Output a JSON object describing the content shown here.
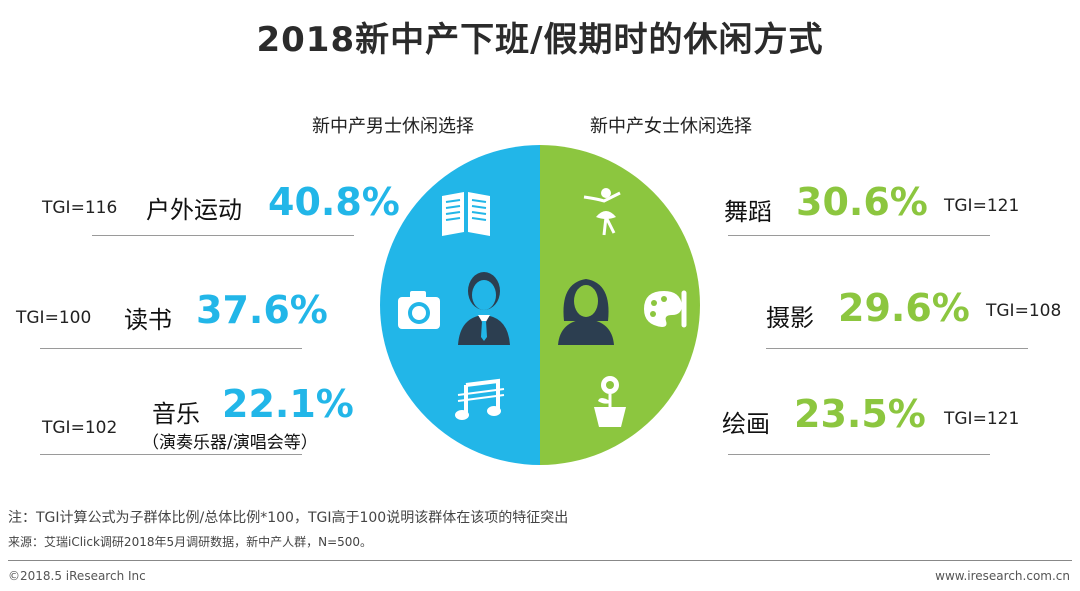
{
  "title": "2018新中产下班/假期时的休闲方式",
  "male_group_label": "新中产男士休闲选择",
  "female_group_label": "新中产女士休闲选择",
  "male_items": [
    {
      "label": "户外运动",
      "percent": "40.8%",
      "tgi": "TGI=116",
      "sub": ""
    },
    {
      "label": "读书",
      "percent": "37.6%",
      "tgi": "TGI=100",
      "sub": ""
    },
    {
      "label": "音乐",
      "percent": "22.1%",
      "tgi": "TGI=102",
      "sub": "（演奏乐器/演唱会等）"
    }
  ],
  "female_items": [
    {
      "label": "舞蹈",
      "percent": "30.6%",
      "tgi": "TGI=121"
    },
    {
      "label": "摄影",
      "percent": "29.6%",
      "tgi": "TGI=108"
    },
    {
      "label": "绘画",
      "percent": "23.5%",
      "tgi": "TGI=121"
    }
  ],
  "note": "注：TGI计算公式为子群体比例/总体比例*100，TGI高于100说明该群体在该项的特征突出",
  "source": "来源：艾瑞iClick调研2018年5月调研数据，新中产人群，N=500。",
  "footer_left": "©2018.5 iResearch Inc",
  "footer_right": "www.iresearch.com.cn",
  "colors": {
    "male": "#22b6e8",
    "female": "#8cc63f"
  },
  "icons": [
    "book-icon",
    "camera-icon",
    "man-icon",
    "music-icon",
    "dancer-icon",
    "woman-icon",
    "palette-icon",
    "flower-pot-icon"
  ],
  "chart_data": {
    "type": "table",
    "columns": [
      "item",
      "percent",
      "TGI"
    ],
    "groups": [
      {
        "name": "新中产男士休闲选择",
        "rows": [
          [
            "户外运动",
            40.8,
            116
          ],
          [
            "读书",
            37.6,
            100
          ],
          [
            "音乐",
            22.1,
            102
          ]
        ]
      },
      {
        "name": "新中产女士休闲选择",
        "rows": [
          [
            "舞蹈",
            30.6,
            121
          ],
          [
            "摄影",
            29.6,
            108
          ],
          [
            "绘画",
            23.5,
            121
          ]
        ]
      }
    ]
  }
}
